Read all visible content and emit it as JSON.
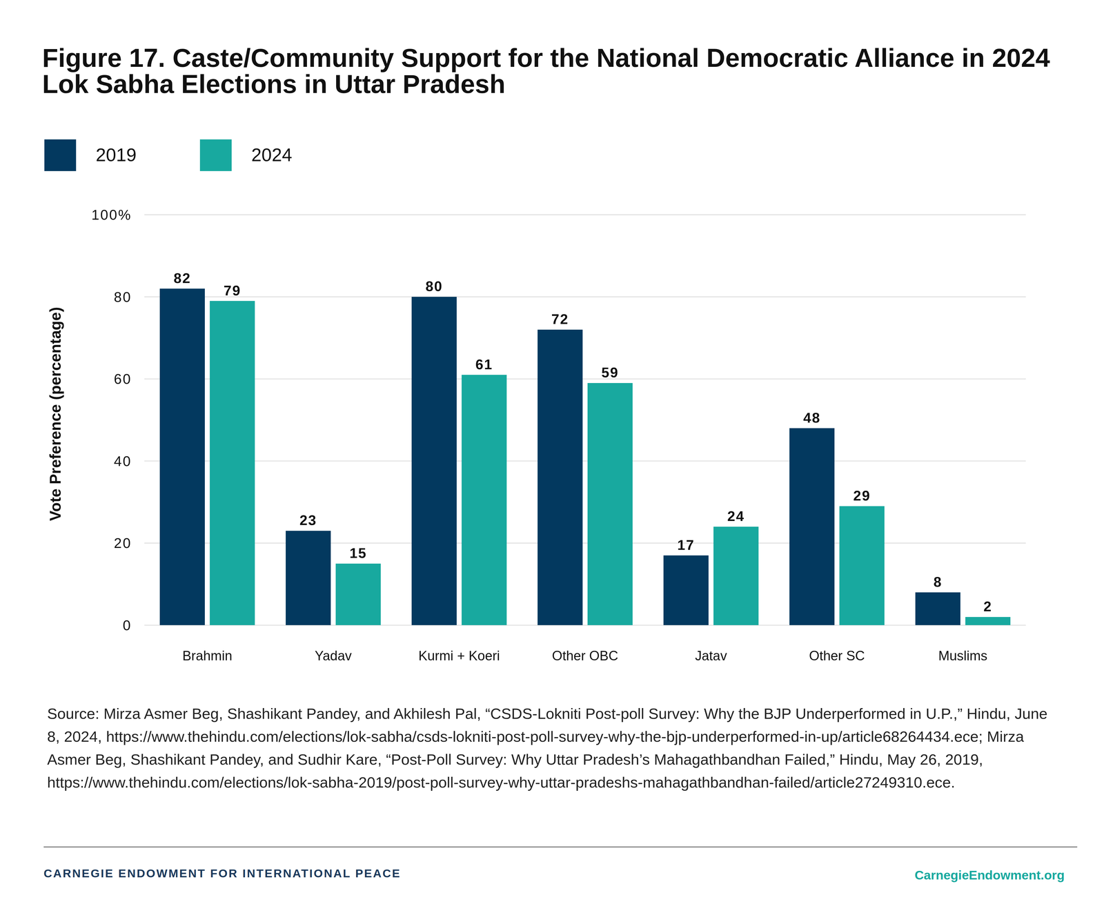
{
  "chart_data": {
    "type": "bar",
    "title": "Figure 17. Caste/Community Support for the National Democratic Alliance in 2024 Lok Sabha Elections in Uttar Pradesh",
    "y_label": "Vote Preference (percentage)",
    "categories": [
      "Brahmin",
      "Yadav",
      "Kurmi + Koeri",
      "Other OBC",
      "Jatav",
      "Other SC",
      "Muslims"
    ],
    "series": [
      {
        "name": "2019",
        "color": "#03395f",
        "values": [
          82,
          23,
          80,
          72,
          17,
          48,
          8
        ]
      },
      {
        "name": "2024",
        "color": "#18a99f",
        "values": [
          79,
          15,
          61,
          59,
          24,
          29,
          2
        ]
      }
    ],
    "ylim": [
      0,
      100
    ],
    "yticks": [
      0,
      20,
      40,
      60,
      80,
      {
        "value": 100,
        "label": "100%"
      }
    ],
    "grid": true,
    "legend": "top-left",
    "data_labels": true,
    "source": "Source: Mirza Asmer Beg, Shashikant Pandey, and Akhilesh Pal, “CSDS-Lokniti Post-poll Survey: Why the BJP Underperformed in U.P.,” Hindu, June 8, 2024, https://www.thehindu.com/elections/lok-sabha/csds-lokniti-post-poll-survey-why-the-bjp-underperformed-in-up/article68264434.ece; Mirza Asmer Beg, Shashikant Pandey, and Sudhir Kare, “Post-Poll Survey: Why Uttar Pradesh’s Mahagathbandhan Failed,” Hindu, May 26, 2019, https://www.thehindu.com/elections/lok-sabha-2019/post-poll-survey-why-uttar-pradeshs-mahagathbandhan-failed/article27249310.ece.",
    "publisher": "CARNEGIE ENDOWMENT FOR INTERNATIONAL PEACE",
    "website": "CarnegieEndowment.org"
  }
}
